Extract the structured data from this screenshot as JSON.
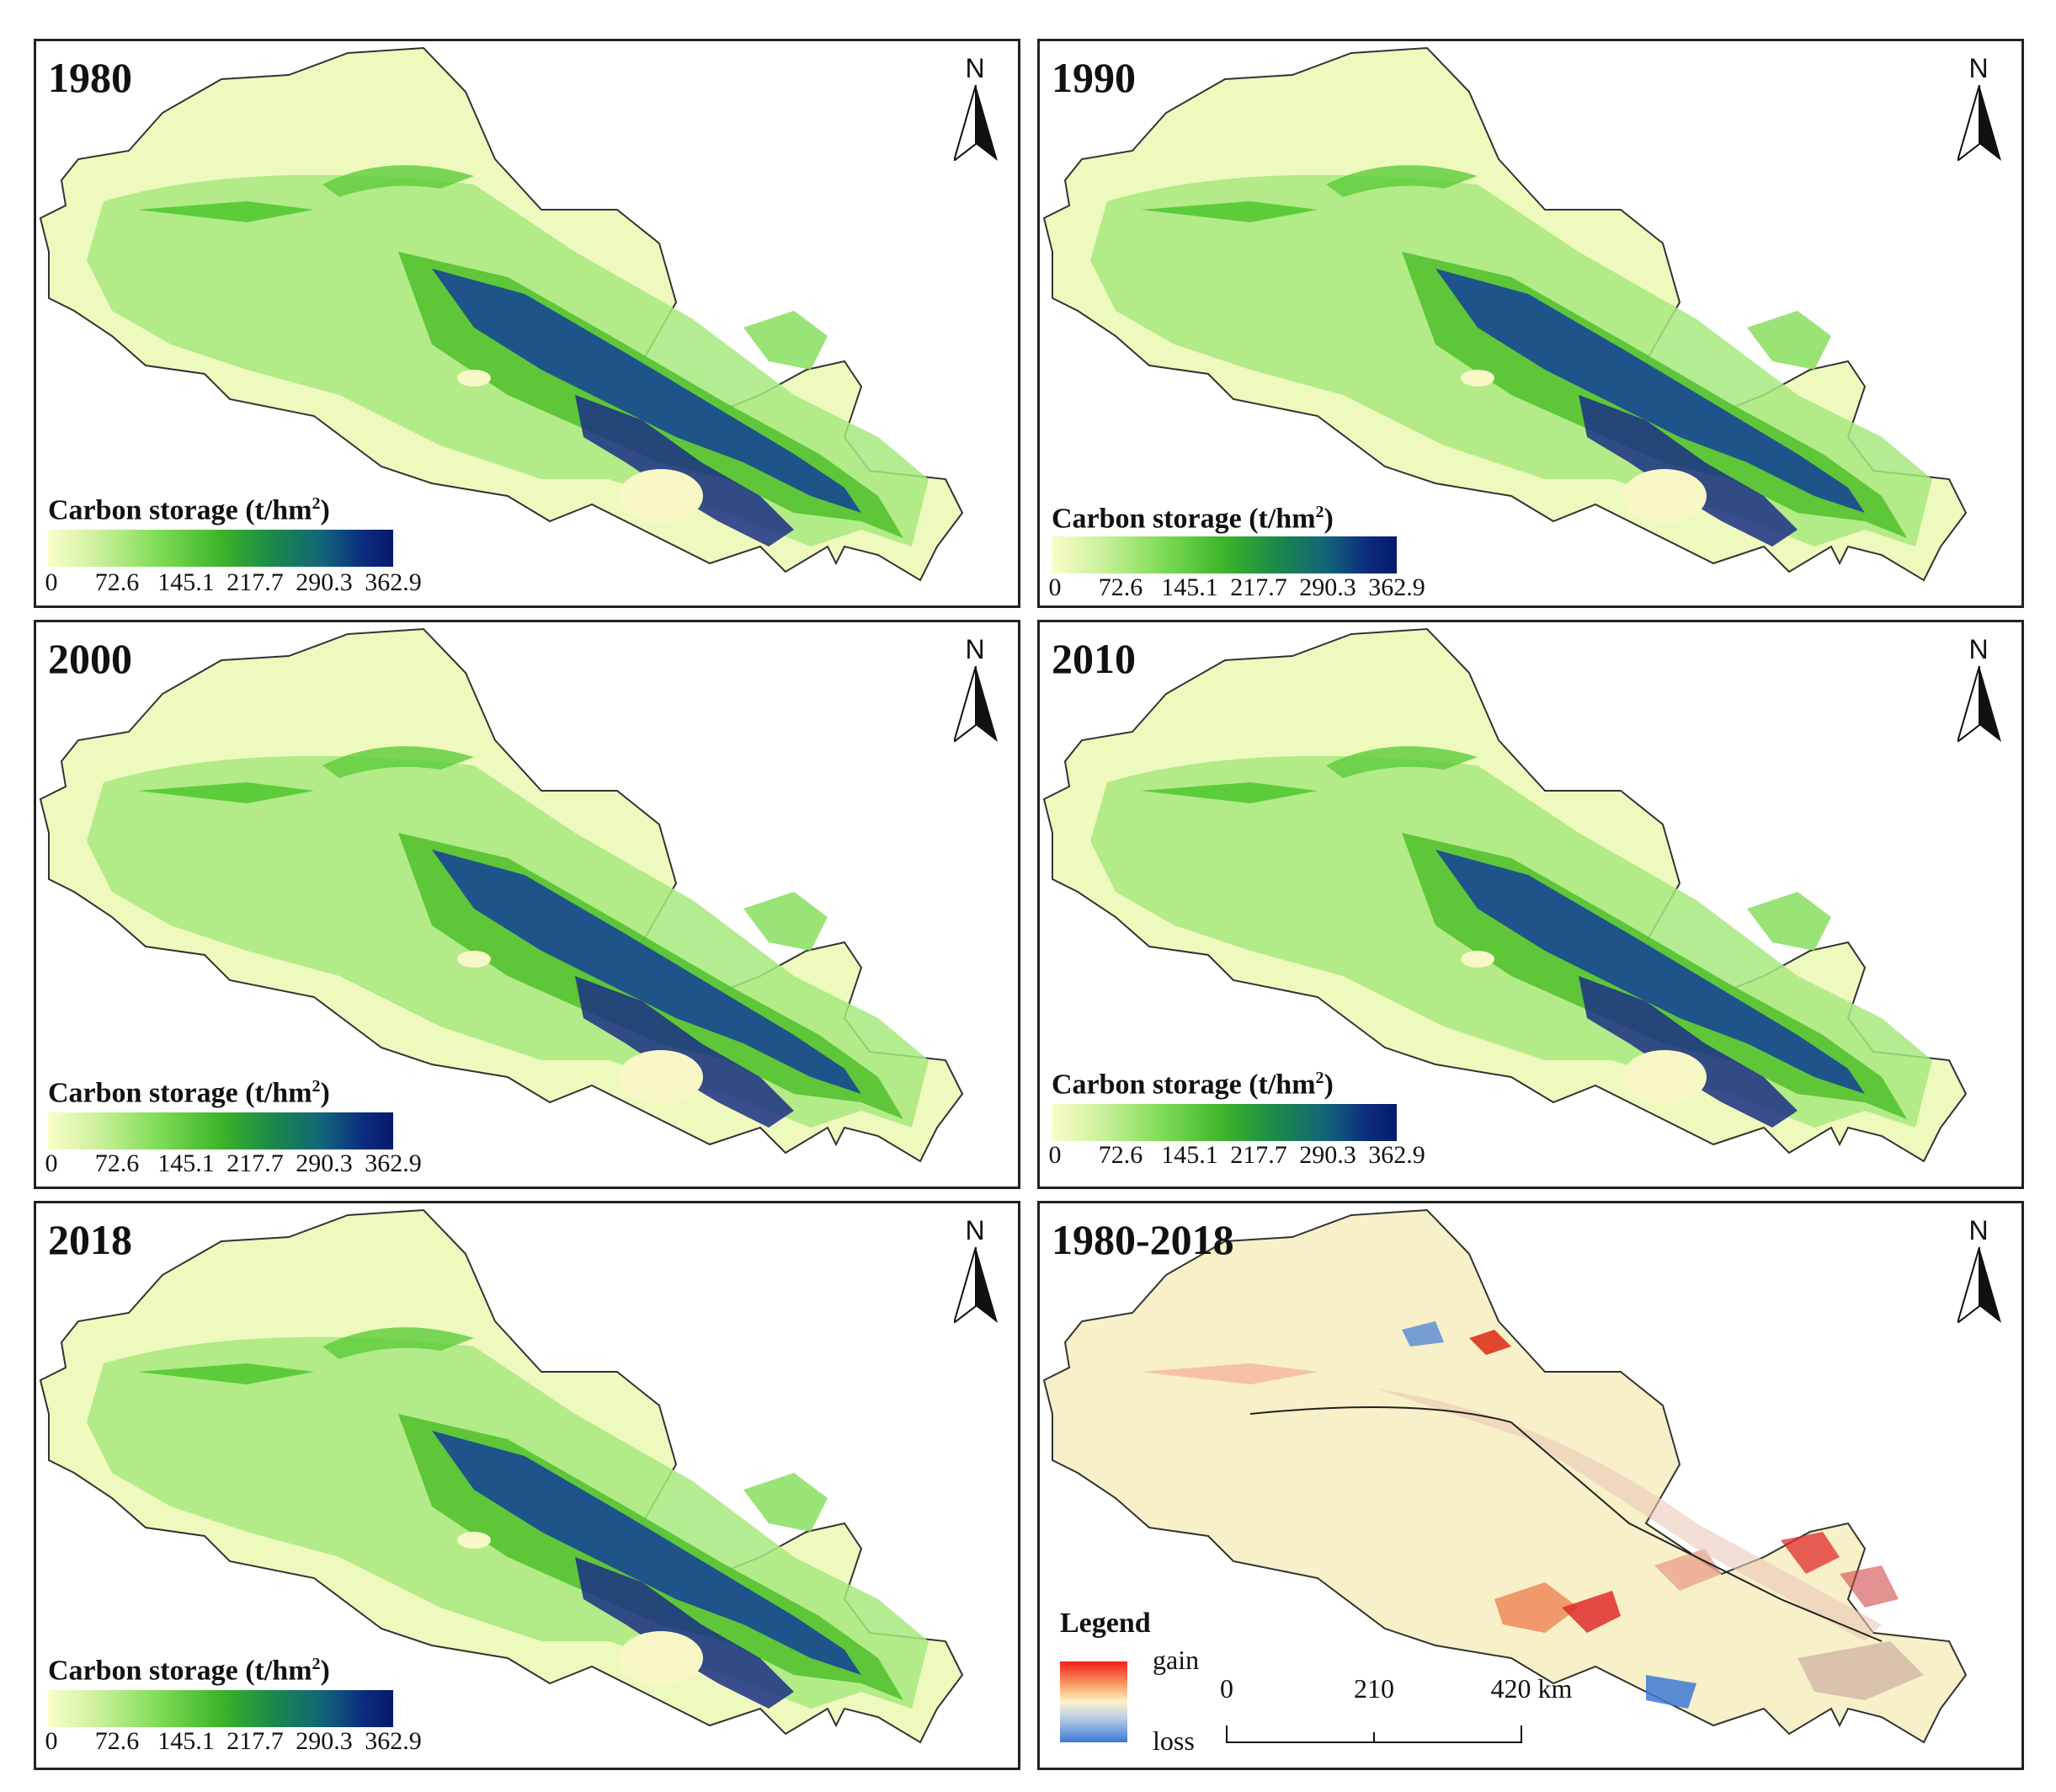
{
  "panels": [
    {
      "year": "1980",
      "type": "storage"
    },
    {
      "year": "1990",
      "type": "storage"
    },
    {
      "year": "2000",
      "type": "storage"
    },
    {
      "year": "2010",
      "type": "storage"
    },
    {
      "year": "2018",
      "type": "storage"
    },
    {
      "year": "1980-2018",
      "type": "change"
    }
  ],
  "storage_legend": {
    "title": "Carbon storage (t/hm",
    "title_sup": "2",
    "title_close": ")",
    "ticks": [
      "0",
      "72.6",
      "145.1",
      "217.7",
      "290.3",
      "362.9"
    ],
    "min": 0,
    "max": 362.9
  },
  "change_legend": {
    "title": "Legend",
    "gain": "gain",
    "loss": "loss"
  },
  "scale_bar": {
    "labels": [
      "0",
      "210",
      "420 km"
    ],
    "values_km": [
      0,
      210,
      420
    ]
  },
  "north_arrow": {
    "label": "N",
    "icon": "north-arrow-icon"
  },
  "colors": {
    "low": "#fbfdc9",
    "mid": "#3cb529",
    "high": "#071a6b",
    "gain": "#f21d1d",
    "loss": "#3d79d4",
    "neutral": "#f7f0c8"
  }
}
